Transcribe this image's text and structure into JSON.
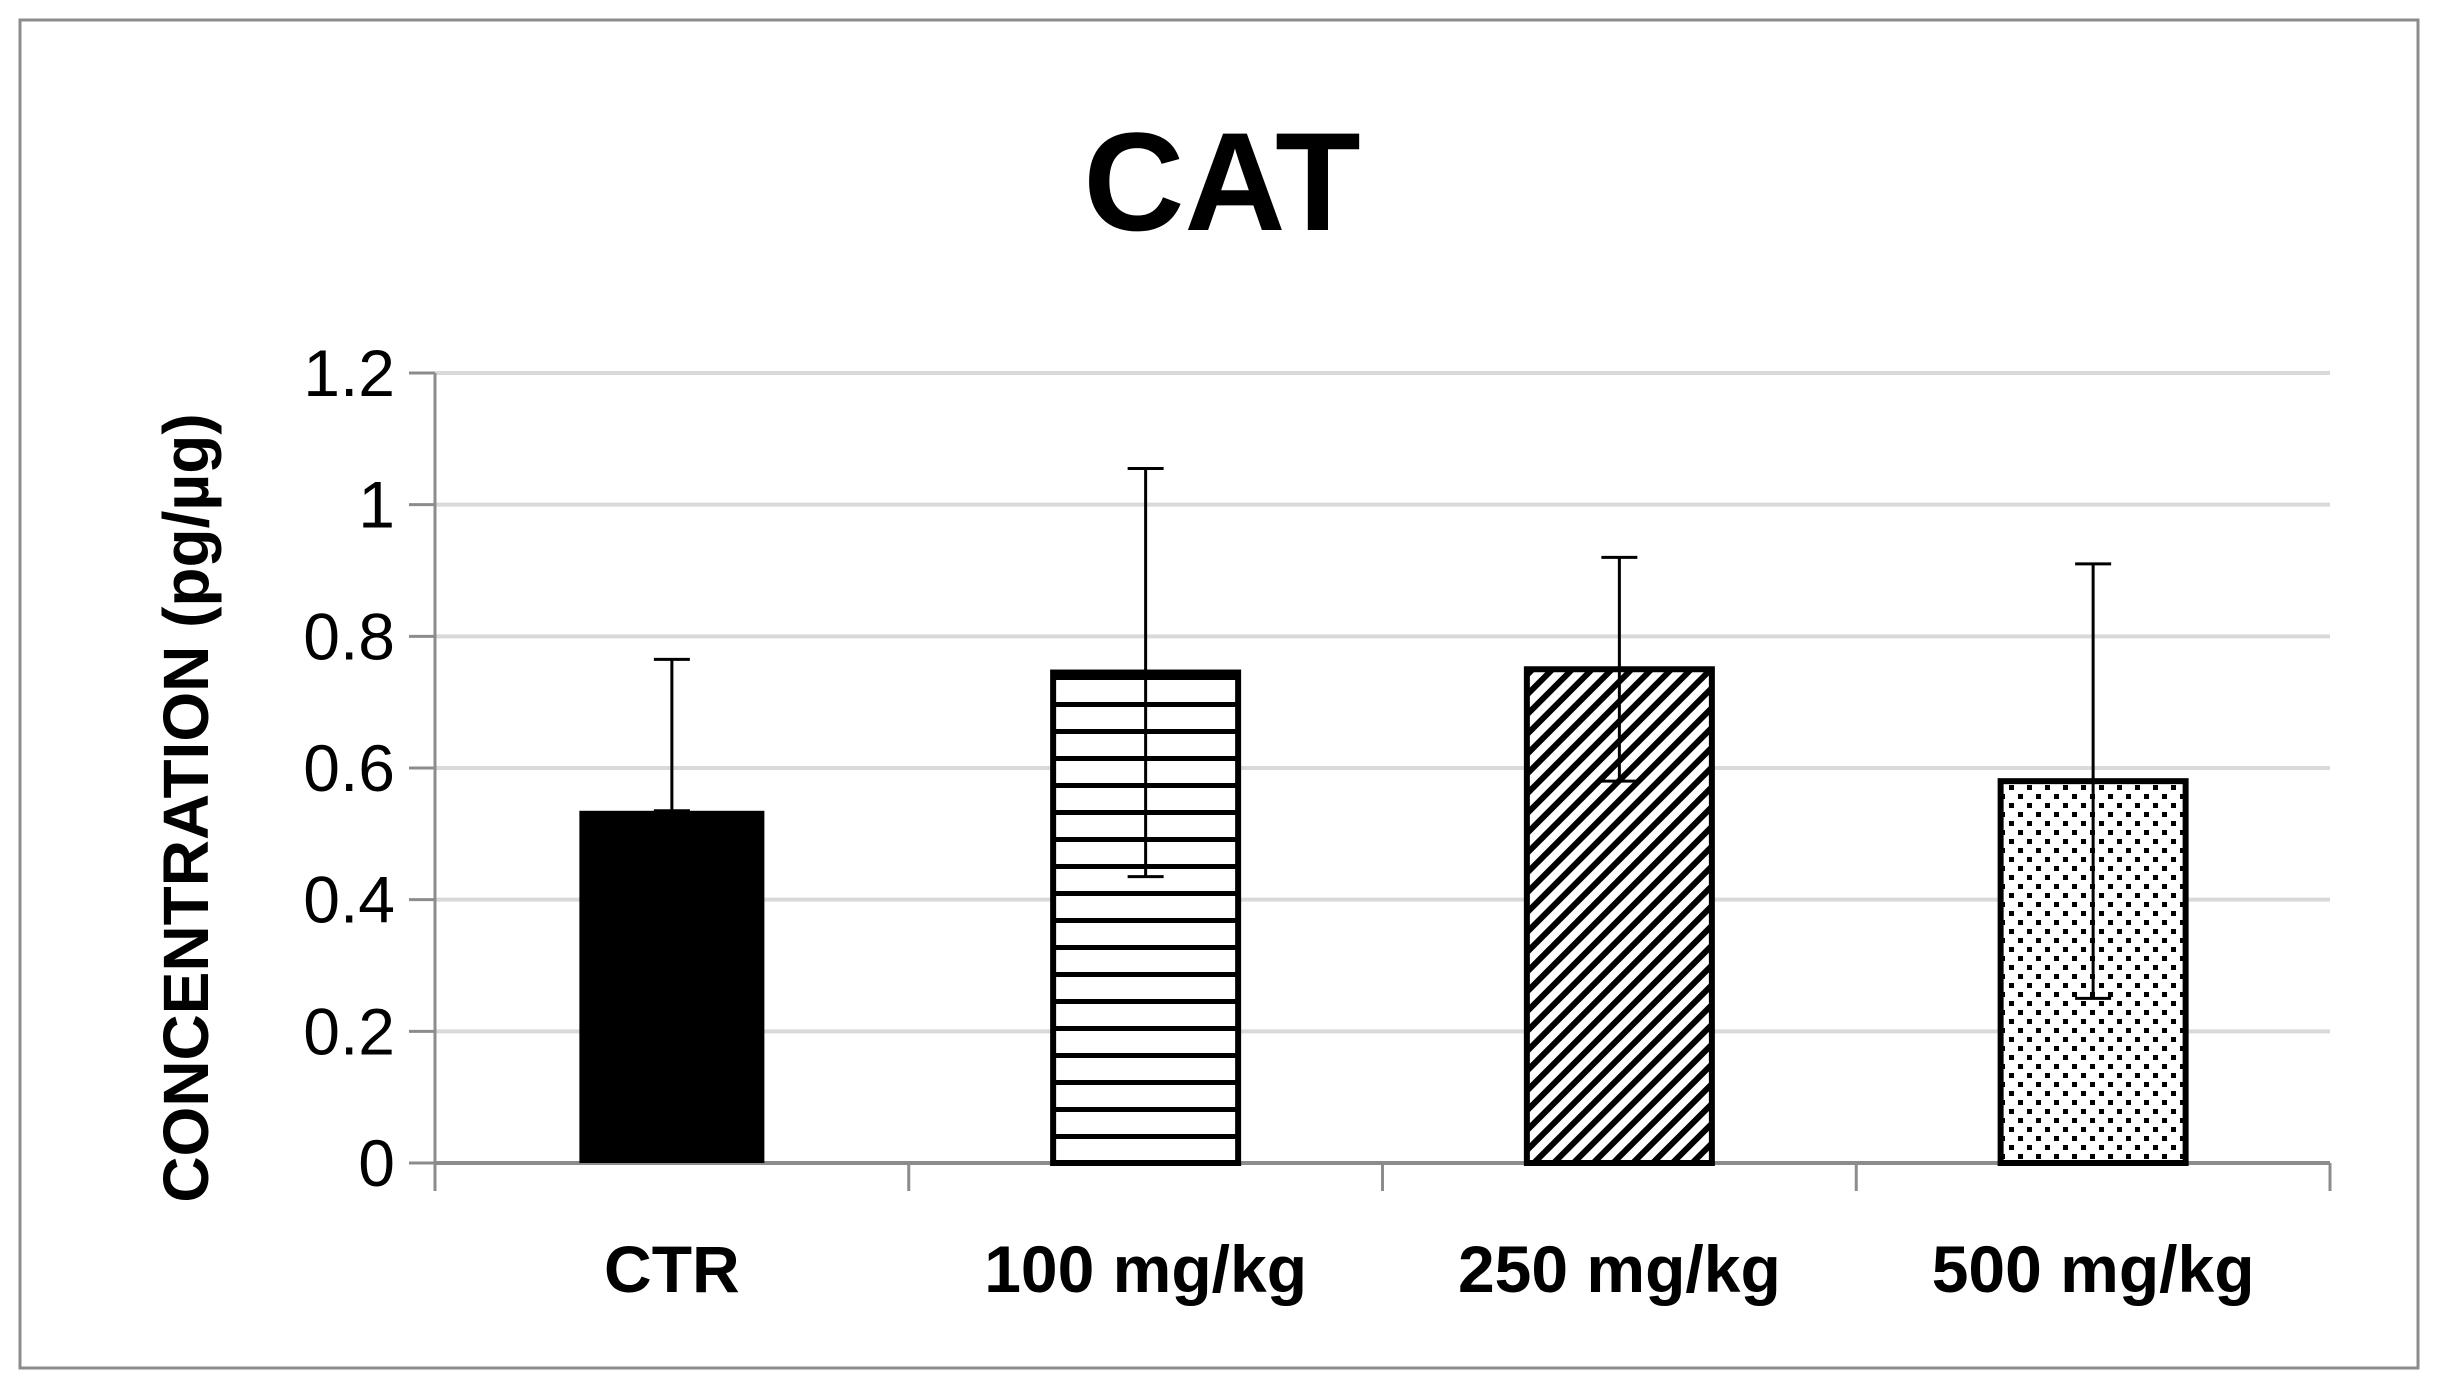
{
  "chart_data": {
    "type": "bar",
    "title": "CAT",
    "xlabel": "",
    "ylabel": "CONCENTRATION (pg/µg)",
    "ylim": [
      0,
      1.2
    ],
    "yticks": [
      0,
      0.2,
      0.4,
      0.6,
      0.8,
      1,
      1.2
    ],
    "ytick_labels": [
      "0",
      "0.2",
      "0.4",
      "0.6",
      "0.8",
      "1",
      "1.2"
    ],
    "grid": true,
    "categories": [
      "CTR",
      "100 mg/kg",
      "250 mg/kg",
      "500 mg/kg"
    ],
    "values": [
      0.535,
      0.745,
      0.75,
      0.58
    ],
    "error_upper": [
      0.765,
      1.055,
      0.92,
      0.91
    ],
    "error_lower": [
      0.535,
      0.435,
      0.58,
      0.25
    ],
    "fills": [
      "solid",
      "horizontal-lines",
      "diagonal-lines",
      "dots"
    ],
    "colors": {
      "bar": "#000000",
      "grid": "#d9d9d9",
      "axis": "#8c8c8c",
      "frame": "#8c8c8c"
    }
  }
}
